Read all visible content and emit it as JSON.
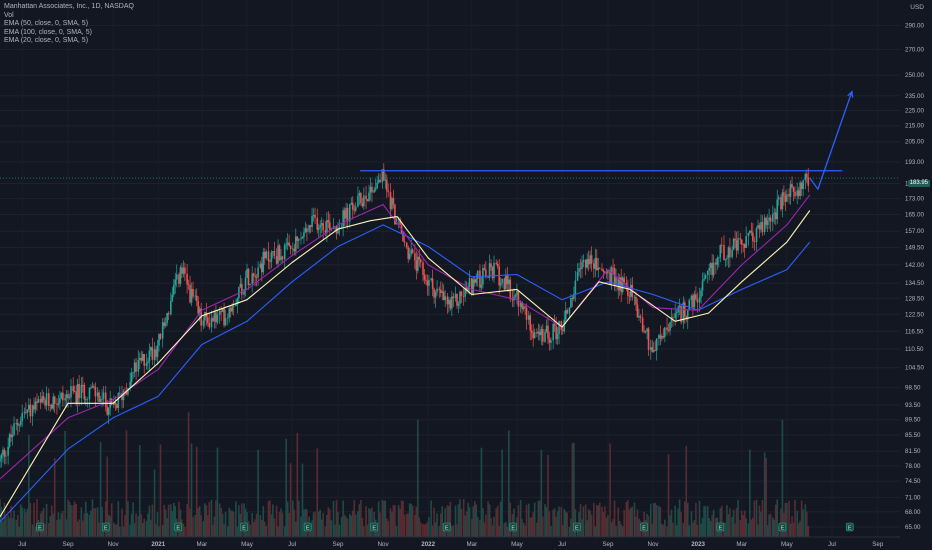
{
  "header": {
    "symbol_line": "Manhattan Associates, Inc., 1D, NASDAQ",
    "vol_label": "Vol",
    "ema_lines": [
      "EMA (50, close, 0, SMA, 5)",
      "EMA (100, close, 0, SMA, 5)",
      "EMA (20, close, 0, SMA, 5)"
    ],
    "currency": "USD",
    "price_tag": "183.95"
  },
  "colors": {
    "background": "#131722",
    "up": "#26a69a",
    "down": "#ef5350",
    "ema20": "#fff5b8",
    "ema50": "#9c27b0",
    "ema100": "#2962ff",
    "drawing": "#2962ff"
  },
  "chart_data": {
    "type": "candlestick",
    "title": "Manhattan Associates, Inc., 1D, NASDAQ",
    "y_scale": "log",
    "ylim": [
      65,
      300
    ],
    "y_ticks": [
      "290.00",
      "270.00",
      "250.00",
      "235.00",
      "225.00",
      "215.00",
      "205.00",
      "193.00",
      "181.00",
      "173.00",
      "165.00",
      "157.00",
      "149.50",
      "142.00",
      "134.50",
      "128.50",
      "122.50",
      "116.50",
      "110.50",
      "104.50",
      "98.50",
      "93.50",
      "89.50",
      "85.50",
      "81.50",
      "78.00",
      "74.50",
      "71.00",
      "68.00",
      "65.00"
    ],
    "x_ticks": [
      "Jul",
      "Sep",
      "Nov",
      "2021",
      "Mar",
      "May",
      "Jul",
      "Sep",
      "Nov",
      "2022",
      "Mar",
      "May",
      "Jul",
      "Sep",
      "Nov",
      "2023",
      "Mar",
      "May",
      "Jul",
      "Sep"
    ],
    "x_range": [
      "2020-06-01",
      "2023-10-01"
    ],
    "close_path": [
      {
        "date": "2020-06-01",
        "close": 79
      },
      {
        "date": "2020-07-01",
        "close": 91
      },
      {
        "date": "2020-08-01",
        "close": 94
      },
      {
        "date": "2020-09-01",
        "close": 96
      },
      {
        "date": "2020-10-01",
        "close": 98
      },
      {
        "date": "2020-11-01",
        "close": 92
      },
      {
        "date": "2020-12-01",
        "close": 104
      },
      {
        "date": "2021-01-01",
        "close": 112
      },
      {
        "date": "2021-02-01",
        "close": 140
      },
      {
        "date": "2021-03-01",
        "close": 120
      },
      {
        "date": "2021-04-01",
        "close": 122
      },
      {
        "date": "2021-05-01",
        "close": 137
      },
      {
        "date": "2021-06-01",
        "close": 146
      },
      {
        "date": "2021-07-01",
        "close": 148
      },
      {
        "date": "2021-08-01",
        "close": 162
      },
      {
        "date": "2021-09-01",
        "close": 160
      },
      {
        "date": "2021-10-01",
        "close": 172
      },
      {
        "date": "2021-11-01",
        "close": 185
      },
      {
        "date": "2021-12-01",
        "close": 150
      },
      {
        "date": "2022-01-01",
        "close": 135
      },
      {
        "date": "2022-02-01",
        "close": 125
      },
      {
        "date": "2022-03-01",
        "close": 134
      },
      {
        "date": "2022-04-01",
        "close": 140
      },
      {
        "date": "2022-05-01",
        "close": 128
      },
      {
        "date": "2022-06-01",
        "close": 114
      },
      {
        "date": "2022-07-01",
        "close": 118
      },
      {
        "date": "2022-08-01",
        "close": 145
      },
      {
        "date": "2022-09-01",
        "close": 138
      },
      {
        "date": "2022-10-01",
        "close": 132
      },
      {
        "date": "2022-11-01",
        "close": 110
      },
      {
        "date": "2022-12-01",
        "close": 121
      },
      {
        "date": "2023-01-01",
        "close": 128
      },
      {
        "date": "2023-02-01",
        "close": 148
      },
      {
        "date": "2023-03-01",
        "close": 150
      },
      {
        "date": "2023-04-01",
        "close": 160
      },
      {
        "date": "2023-05-01",
        "close": 174
      },
      {
        "date": "2023-06-01",
        "close": 184
      }
    ],
    "ema20": [
      {
        "date": "2020-06-01",
        "value": 67
      },
      {
        "date": "2020-09-01",
        "value": 94
      },
      {
        "date": "2020-11-01",
        "value": 94
      },
      {
        "date": "2021-01-01",
        "value": 106
      },
      {
        "date": "2021-03-01",
        "value": 122
      },
      {
        "date": "2021-05-01",
        "value": 128
      },
      {
        "date": "2021-07-01",
        "value": 143
      },
      {
        "date": "2021-09-01",
        "value": 158
      },
      {
        "date": "2021-10-15",
        "value": 162
      },
      {
        "date": "2021-11-20",
        "value": 164
      },
      {
        "date": "2022-01-01",
        "value": 145
      },
      {
        "date": "2022-03-01",
        "value": 130
      },
      {
        "date": "2022-05-01",
        "value": 132
      },
      {
        "date": "2022-07-01",
        "value": 118
      },
      {
        "date": "2022-08-20",
        "value": 135
      },
      {
        "date": "2022-10-01",
        "value": 132
      },
      {
        "date": "2022-12-01",
        "value": 120
      },
      {
        "date": "2023-01-15",
        "value": 123
      },
      {
        "date": "2023-03-01",
        "value": 135
      },
      {
        "date": "2023-05-01",
        "value": 152
      },
      {
        "date": "2023-06-01",
        "value": 167
      }
    ],
    "ema50": [
      {
        "date": "2020-06-01",
        "value": 75
      },
      {
        "date": "2020-09-01",
        "value": 90
      },
      {
        "date": "2020-11-01",
        "value": 95
      },
      {
        "date": "2021-01-01",
        "value": 104
      },
      {
        "date": "2021-03-01",
        "value": 124
      },
      {
        "date": "2021-05-01",
        "value": 132
      },
      {
        "date": "2021-07-01",
        "value": 146
      },
      {
        "date": "2021-09-01",
        "value": 160
      },
      {
        "date": "2021-11-01",
        "value": 170
      },
      {
        "date": "2022-01-01",
        "value": 142
      },
      {
        "date": "2022-03-01",
        "value": 132
      },
      {
        "date": "2022-05-01",
        "value": 128
      },
      {
        "date": "2022-07-01",
        "value": 118
      },
      {
        "date": "2022-09-01",
        "value": 140
      },
      {
        "date": "2022-11-01",
        "value": 125
      },
      {
        "date": "2023-01-01",
        "value": 124
      },
      {
        "date": "2023-03-01",
        "value": 142
      },
      {
        "date": "2023-05-01",
        "value": 160
      },
      {
        "date": "2023-06-01",
        "value": 175
      }
    ],
    "ema100": [
      {
        "date": "2020-06-01",
        "value": 66
      },
      {
        "date": "2020-09-01",
        "value": 82
      },
      {
        "date": "2020-11-01",
        "value": 90
      },
      {
        "date": "2021-01-01",
        "value": 96
      },
      {
        "date": "2021-03-01",
        "value": 112
      },
      {
        "date": "2021-05-01",
        "value": 120
      },
      {
        "date": "2021-07-01",
        "value": 135
      },
      {
        "date": "2021-09-01",
        "value": 150
      },
      {
        "date": "2021-11-01",
        "value": 160
      },
      {
        "date": "2022-01-01",
        "value": 150
      },
      {
        "date": "2022-03-01",
        "value": 137
      },
      {
        "date": "2022-05-01",
        "value": 138
      },
      {
        "date": "2022-07-01",
        "value": 128
      },
      {
        "date": "2022-09-01",
        "value": 135
      },
      {
        "date": "2022-11-01",
        "value": 130
      },
      {
        "date": "2023-01-01",
        "value": 124
      },
      {
        "date": "2023-03-01",
        "value": 132
      },
      {
        "date": "2023-05-01",
        "value": 140
      },
      {
        "date": "2023-06-01",
        "value": 152
      }
    ],
    "resistance_line": {
      "value": 188,
      "from": "2021-10-01",
      "to": "2023-07-15"
    },
    "projection_arrow": [
      {
        "date": "2023-06-01",
        "value": 184
      },
      {
        "date": "2023-06-12",
        "value": 178
      },
      {
        "date": "2023-07-28",
        "value": 238
      }
    ],
    "current_price": 183.95,
    "event_markers": [
      "E",
      "E",
      "E",
      "E",
      "E",
      "E",
      "E",
      "E",
      "E",
      "E",
      "E",
      "E",
      "E",
      "E",
      "E"
    ]
  }
}
